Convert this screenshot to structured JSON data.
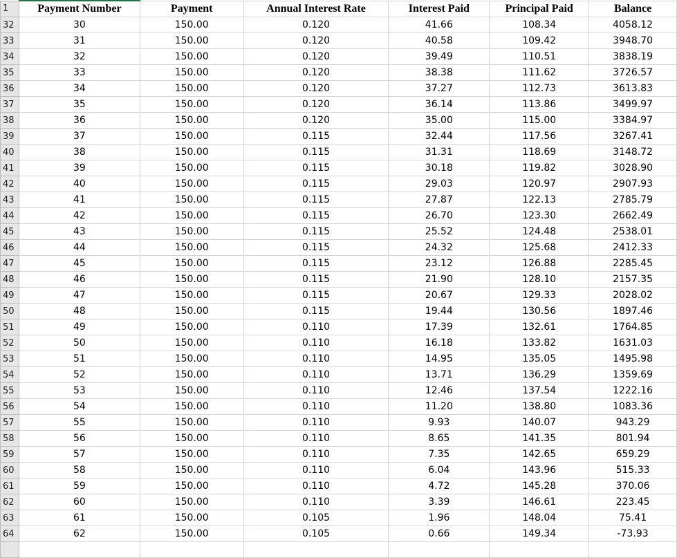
{
  "header_row_number": "1",
  "columns": [
    "Payment Number",
    "Payment",
    "Annual Interest Rate",
    "Interest Paid",
    "Principal Paid",
    "Balance"
  ],
  "rows": [
    [
      "32",
      "30",
      "150.00",
      "0.120",
      "41.66",
      "108.34",
      "4058.12"
    ],
    [
      "33",
      "31",
      "150.00",
      "0.120",
      "40.58",
      "109.42",
      "3948.70"
    ],
    [
      "34",
      "32",
      "150.00",
      "0.120",
      "39.49",
      "110.51",
      "3838.19"
    ],
    [
      "35",
      "33",
      "150.00",
      "0.120",
      "38.38",
      "111.62",
      "3726.57"
    ],
    [
      "36",
      "34",
      "150.00",
      "0.120",
      "37.27",
      "112.73",
      "3613.83"
    ],
    [
      "37",
      "35",
      "150.00",
      "0.120",
      "36.14",
      "113.86",
      "3499.97"
    ],
    [
      "38",
      "36",
      "150.00",
      "0.120",
      "35.00",
      "115.00",
      "3384.97"
    ],
    [
      "39",
      "37",
      "150.00",
      "0.115",
      "32.44",
      "117.56",
      "3267.41"
    ],
    [
      "40",
      "38",
      "150.00",
      "0.115",
      "31.31",
      "118.69",
      "3148.72"
    ],
    [
      "41",
      "39",
      "150.00",
      "0.115",
      "30.18",
      "119.82",
      "3028.90"
    ],
    [
      "42",
      "40",
      "150.00",
      "0.115",
      "29.03",
      "120.97",
      "2907.93"
    ],
    [
      "43",
      "41",
      "150.00",
      "0.115",
      "27.87",
      "122.13",
      "2785.79"
    ],
    [
      "44",
      "42",
      "150.00",
      "0.115",
      "26.70",
      "123.30",
      "2662.49"
    ],
    [
      "45",
      "43",
      "150.00",
      "0.115",
      "25.52",
      "124.48",
      "2538.01"
    ],
    [
      "46",
      "44",
      "150.00",
      "0.115",
      "24.32",
      "125.68",
      "2412.33"
    ],
    [
      "47",
      "45",
      "150.00",
      "0.115",
      "23.12",
      "126.88",
      "2285.45"
    ],
    [
      "48",
      "46",
      "150.00",
      "0.115",
      "21.90",
      "128.10",
      "2157.35"
    ],
    [
      "49",
      "47",
      "150.00",
      "0.115",
      "20.67",
      "129.33",
      "2028.02"
    ],
    [
      "50",
      "48",
      "150.00",
      "0.115",
      "19.44",
      "130.56",
      "1897.46"
    ],
    [
      "51",
      "49",
      "150.00",
      "0.110",
      "17.39",
      "132.61",
      "1764.85"
    ],
    [
      "52",
      "50",
      "150.00",
      "0.110",
      "16.18",
      "133.82",
      "1631.03"
    ],
    [
      "53",
      "51",
      "150.00",
      "0.110",
      "14.95",
      "135.05",
      "1495.98"
    ],
    [
      "54",
      "52",
      "150.00",
      "0.110",
      "13.71",
      "136.29",
      "1359.69"
    ],
    [
      "55",
      "53",
      "150.00",
      "0.110",
      "12.46",
      "137.54",
      "1222.16"
    ],
    [
      "56",
      "54",
      "150.00",
      "0.110",
      "11.20",
      "138.80",
      "1083.36"
    ],
    [
      "57",
      "55",
      "150.00",
      "0.110",
      "9.93",
      "140.07",
      "943.29"
    ],
    [
      "58",
      "56",
      "150.00",
      "0.110",
      "8.65",
      "141.35",
      "801.94"
    ],
    [
      "59",
      "57",
      "150.00",
      "0.110",
      "7.35",
      "142.65",
      "659.29"
    ],
    [
      "60",
      "58",
      "150.00",
      "0.110",
      "6.04",
      "143.96",
      "515.33"
    ],
    [
      "61",
      "59",
      "150.00",
      "0.110",
      "4.72",
      "145.28",
      "370.06"
    ],
    [
      "62",
      "60",
      "150.00",
      "0.110",
      "3.39",
      "146.61",
      "223.45"
    ],
    [
      "63",
      "61",
      "150.00",
      "0.105",
      "1.96",
      "148.04",
      "75.41"
    ],
    [
      "64",
      "62",
      "150.00",
      "0.105",
      "0.66",
      "149.34",
      "-73.93"
    ]
  ],
  "colors": {
    "selection": "#217346",
    "row_header_bg": "#e6e6e6",
    "gridline": "#d4d4d4"
  }
}
